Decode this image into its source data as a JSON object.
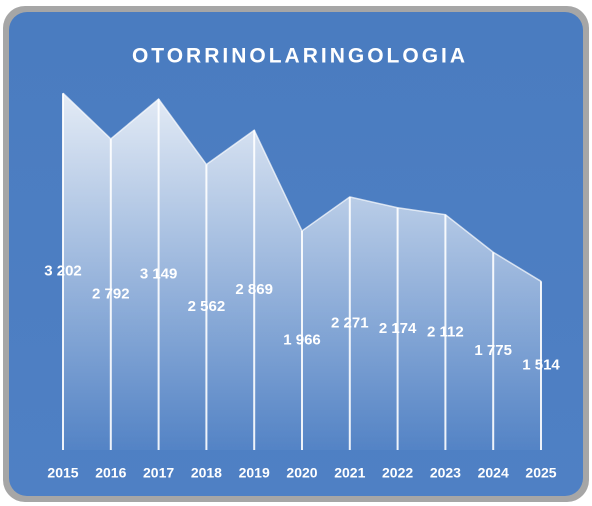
{
  "chart_data": {
    "type": "area",
    "title": "OTORRINOLARINGOLOGIA",
    "categories": [
      "2015",
      "2016",
      "2017",
      "2018",
      "2019",
      "2020",
      "2021",
      "2022",
      "2023",
      "2024",
      "2025"
    ],
    "values": [
      3202,
      2792,
      3149,
      2562,
      2869,
      1966,
      2271,
      2174,
      2112,
      1775,
      1514
    ],
    "value_labels": [
      "3 202",
      "2 792",
      "3 149",
      "2 562",
      "2 869",
      "1 966",
      "2 271",
      "2 174",
      "2 112",
      "1 775",
      "1 514"
    ],
    "color": "#ffffff",
    "ylim": [
      0,
      3500
    ]
  }
}
